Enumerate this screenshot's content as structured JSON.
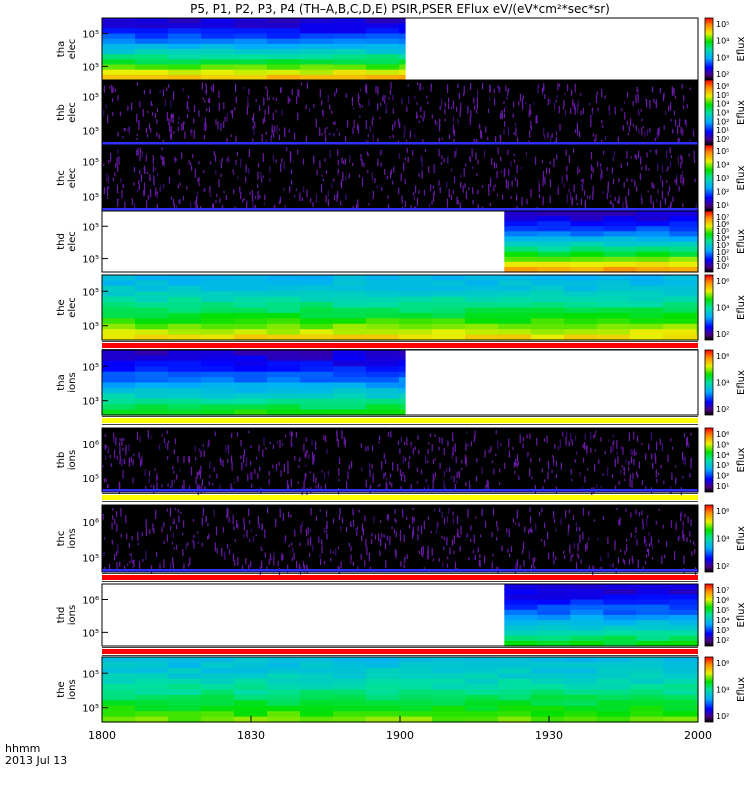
{
  "title": "P5, P1, P2, P3, P4 (TH–A,B,C,D,E) PSIR,PSER EFlux eV/(eV*cm²*sec*sr)",
  "colorbar_label": "Eflux",
  "time_axis": {
    "label_line1": "hhmm",
    "label_line2": "2013 Jul 13",
    "ticks": [
      "1800",
      "1830",
      "1900",
      "1930",
      "2000"
    ]
  },
  "chart_data": {
    "type": "heatmap",
    "x_range_hhmm": [
      "1800",
      "2000"
    ],
    "panels": [
      {
        "id": "tha-elec",
        "ylabel": [
          "tha",
          "elec"
        ],
        "yticks": [
          "10⁵",
          "10⁵"
        ],
        "cbar_ticks": [
          "10⁵",
          "10⁴",
          "10³",
          "10²"
        ],
        "data_x_range": [
          "1800",
          "1901"
        ],
        "data_style": "spectrogram",
        "flux_level_low_energy": 0.82,
        "flux_level_high_energy": 0.15,
        "bar_below": null
      },
      {
        "id": "thb-elec",
        "ylabel": [
          "thb",
          "elec"
        ],
        "yticks": [
          "10⁵",
          "10⁵"
        ],
        "cbar_ticks": [
          "10⁶",
          "10⁵",
          "10⁴",
          "10³",
          "10²",
          "10¹",
          "10⁰"
        ],
        "data_x_range": [
          "1800",
          "2000"
        ],
        "data_style": "noise",
        "bar_below": null
      },
      {
        "id": "thc-elec",
        "ylabel": [
          "thc",
          "elec"
        ],
        "yticks": [
          "10⁵",
          "10⁵"
        ],
        "cbar_ticks": [
          "10⁵",
          "10⁴",
          "10³",
          "10²",
          "10¹"
        ],
        "data_x_range": [
          "1800",
          "2000"
        ],
        "data_style": "noise",
        "bar_below": null
      },
      {
        "id": "thd-elec",
        "ylabel": [
          "thd",
          "elec"
        ],
        "yticks": [
          "10⁵",
          "10⁵"
        ],
        "cbar_ticks": [
          "10⁷",
          "10⁶",
          "10⁵",
          "10⁴",
          "10³",
          "10²",
          "10¹",
          "10⁰"
        ],
        "data_x_range": [
          "1921",
          "2000"
        ],
        "data_style": "spectrogram",
        "flux_level_low_energy": 0.85,
        "flux_level_high_energy": 0.15,
        "bar_below": null
      },
      {
        "id": "the-elec",
        "ylabel": [
          "the",
          "elec"
        ],
        "yticks": [
          "10⁵",
          "10⁵"
        ],
        "cbar_ticks": [
          "10⁶",
          "10⁴",
          "10²"
        ],
        "data_x_range": [
          "1800",
          "2000"
        ],
        "data_style": "spectrogram",
        "flux_level_low_energy": 0.78,
        "flux_level_high_energy": 0.38,
        "bar_below": "red"
      },
      {
        "id": "tha-ions",
        "ylabel": [
          "tha",
          "ions"
        ],
        "yticks": [
          "10⁵",
          "10³"
        ],
        "cbar_ticks": [
          "10⁶",
          "10⁴",
          "10²"
        ],
        "data_x_range": [
          "1800",
          "1901"
        ],
        "data_style": "spectrogram",
        "flux_level_low_energy": 0.62,
        "flux_level_high_energy": 0.15,
        "bar_below": "yellow"
      },
      {
        "id": "thb-ions",
        "ylabel": [
          "thb",
          "ions"
        ],
        "yticks": [
          "10⁶",
          "10⁵"
        ],
        "cbar_ticks": [
          "10⁶",
          "10⁵",
          "10⁴",
          "10³",
          "10²",
          "10¹"
        ],
        "data_x_range": [
          "1800",
          "2000"
        ],
        "data_style": "noise",
        "bar_below": "yellow"
      },
      {
        "id": "thc-ions",
        "ylabel": [
          "thc",
          "ions"
        ],
        "yticks": [
          "10⁶",
          "10⁵"
        ],
        "cbar_ticks": [
          "10⁶",
          "10⁴",
          "10²"
        ],
        "data_x_range": [
          "1800",
          "2000"
        ],
        "data_style": "noise",
        "bar_below": "red"
      },
      {
        "id": "thd-ions",
        "ylabel": [
          "thd",
          "ions"
        ],
        "yticks": [
          "10⁶",
          "10⁵"
        ],
        "cbar_ticks": [
          "10⁷",
          "10⁶",
          "10⁵",
          "10⁴",
          "10³",
          "10²"
        ],
        "data_x_range": [
          "1921",
          "2000"
        ],
        "data_style": "spectrogram",
        "flux_level_low_energy": 0.6,
        "flux_level_high_energy": 0.15,
        "bar_below": "red"
      },
      {
        "id": "the-ions",
        "ylabel": [
          "the",
          "ions"
        ],
        "yticks": [
          "10⁵",
          "10⁵"
        ],
        "cbar_ticks": [
          "10⁶",
          "10⁴",
          "10²"
        ],
        "data_x_range": [
          "1800",
          "2000"
        ],
        "data_style": "spectrogram",
        "flux_level_low_energy": 0.68,
        "flux_level_high_energy": 0.4,
        "bar_below": null
      }
    ]
  }
}
